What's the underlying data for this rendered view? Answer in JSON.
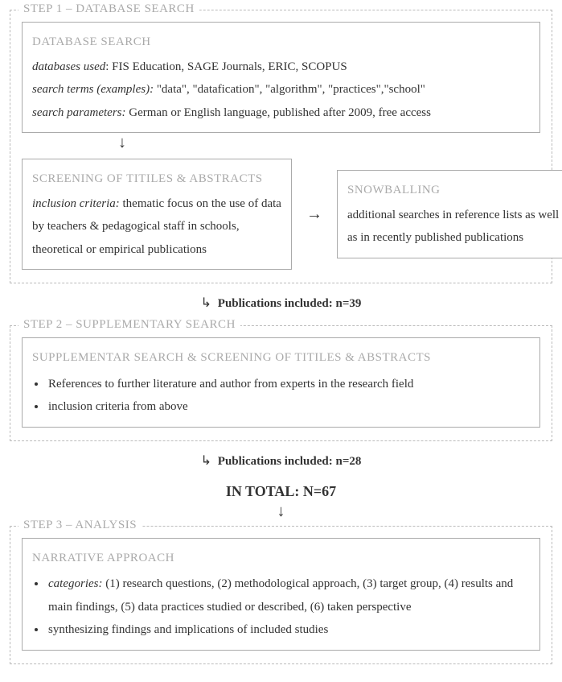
{
  "step1": {
    "label": "STEP 1 – DATABASE SEARCH",
    "dbsearch": {
      "heading": "DATABASE SEARCH",
      "line1_label": "databases used",
      "line1_text": ": FIS Education, SAGE Journals, ERIC, SCOPUS",
      "line2_label": "search terms (examples):",
      "line2_text": "  \"data\", \"datafication\", \"algorithm\", \"practices\",\"school\"",
      "line3_label": "search parameters:",
      "line3_text": " German or English language, published after 2009, free access"
    },
    "screening": {
      "heading": "SCREENING OF TITILES & ABSTRACTS",
      "line_label": "inclusion criteria:",
      "line_text": " thematic focus on the use of data by teachers & pedagogical staff in schools, theoretical or empirical publications"
    },
    "snowballing": {
      "heading": "SNOWBALLING",
      "text": "additional searches in reference lists as well as in recently published publications"
    }
  },
  "pub1": {
    "label": "Publications included: n=39"
  },
  "step2": {
    "label": "STEP 2 – SUPPLEMENTARY SEARCH",
    "supp": {
      "heading": "SUPPLEMENTAR SEARCH & SCREENING OF TITILES & ABSTRACTS",
      "b1": "References to further literature and author from experts in the research field",
      "b2": "inclusion criteria from above"
    }
  },
  "pub2": {
    "label": "Publications included: n=28"
  },
  "total": "IN TOTAL: N=67",
  "step3": {
    "label": "STEP 3 – ANALYSIS",
    "narr": {
      "heading": "NARRATIVE APPROACH",
      "b1_label": "categories:",
      "b1_text": " (1) research questions, (2) methodological approach, (3) target group, (4) results and main findings, (5) data practices studied or described, (6) taken perspective",
      "b2": "synthesizing findings and implications of included studies"
    }
  },
  "colors": {
    "grey_text": "#aaaaaa",
    "border_solid": "#aaaaaa",
    "border_dashed": "#bbbbbb",
    "body_text": "#333333",
    "background": "#ffffff"
  }
}
